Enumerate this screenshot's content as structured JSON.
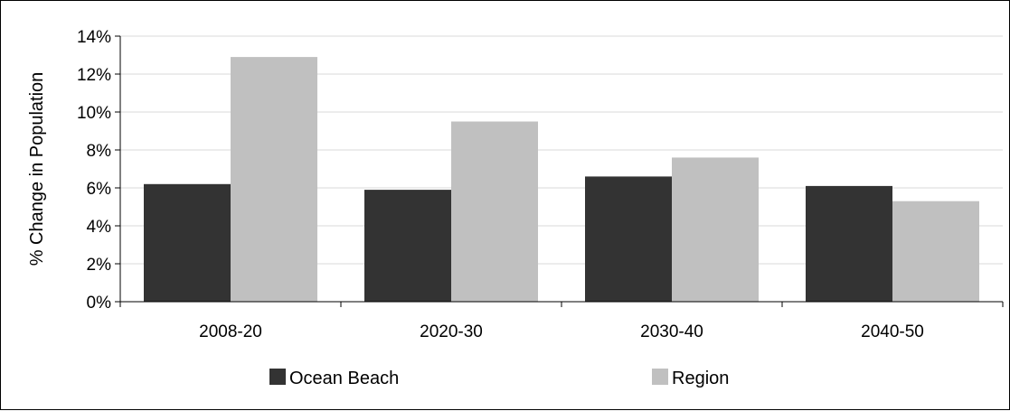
{
  "chart_data": {
    "type": "bar",
    "title": "",
    "xlabel": "",
    "ylabel": "% Change in Population",
    "categories": [
      "2008-20",
      "2020-30",
      "2030-40",
      "2040-50"
    ],
    "series": [
      {
        "name": "Ocean Beach",
        "values": [
          6.2,
          5.9,
          6.6,
          6.1
        ],
        "color": "#333333"
      },
      {
        "name": "Region",
        "values": [
          12.9,
          9.5,
          7.6,
          5.3
        ],
        "color": "#c0c0c0"
      }
    ],
    "ylim": [
      0,
      14
    ],
    "yticks": [
      0,
      2,
      4,
      6,
      8,
      10,
      12,
      14
    ],
    "ytick_labels": [
      "0%",
      "2%",
      "4%",
      "6%",
      "8%",
      "10%",
      "12%",
      "14%"
    ],
    "grid": true,
    "legend_position": "bottom"
  }
}
